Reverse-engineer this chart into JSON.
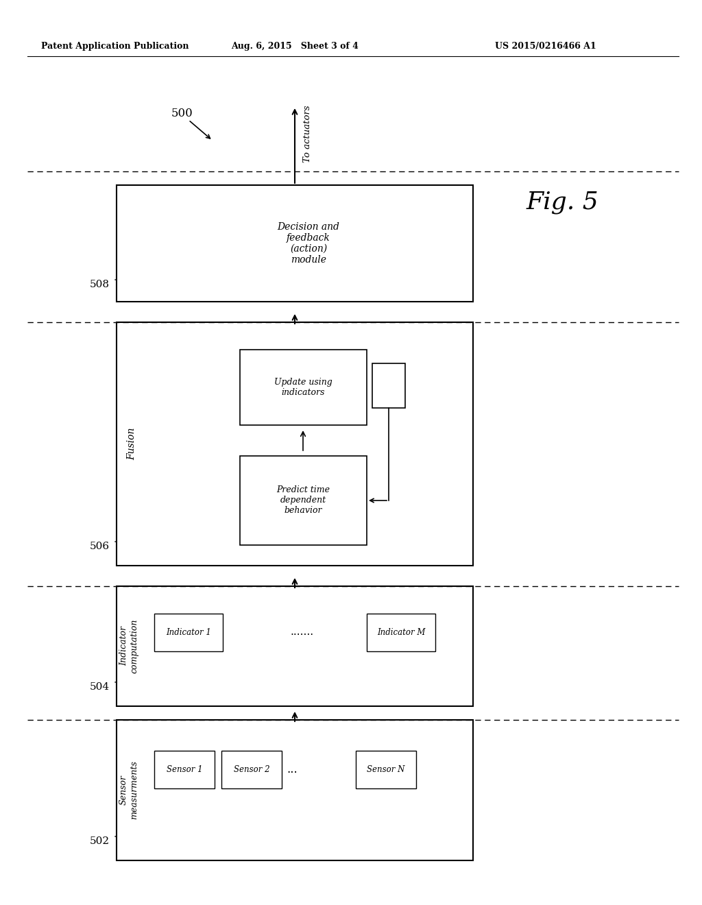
{
  "header_left": "Patent Application Publication",
  "header_center": "Aug. 6, 2015   Sheet 3 of 4",
  "header_right": "US 2015/0216466 A1",
  "fig_label": "Fig. 5",
  "diagram_number": "500",
  "background_color": "#ffffff",
  "page_width": 10.24,
  "page_height": 13.2,
  "dpi": 100
}
